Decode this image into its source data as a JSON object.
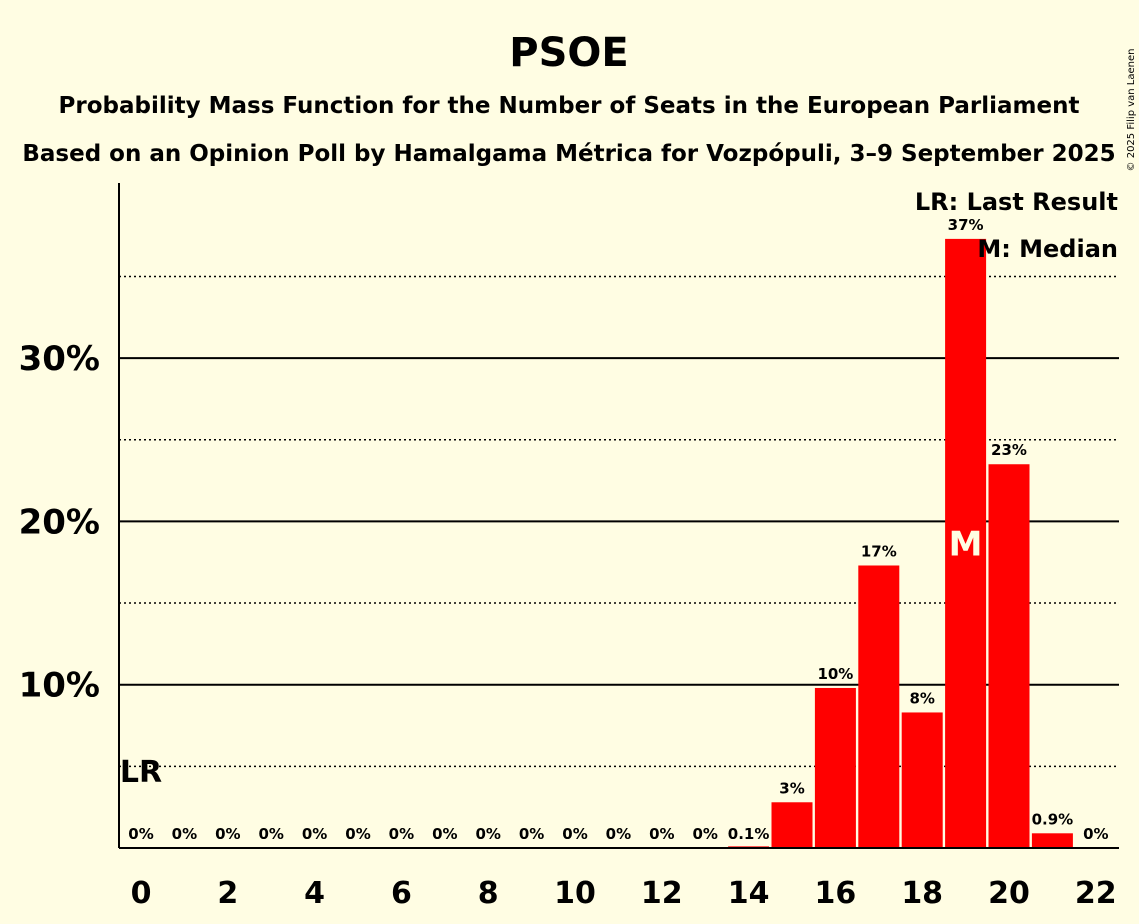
{
  "page": {
    "title": "PSOE",
    "subtitle1": "Probability Mass Function for the Number of Seats in the European Parliament",
    "subtitle2": "Based on an Opinion Poll by Hamalgama Métrica for Vozpópuli, 3–9 September 2025",
    "copyright": "© 2025 Filip van Laenen",
    "legend_lr": "LR: Last Result",
    "legend_m": "M: Median"
  },
  "colors": {
    "background": "#fffde3",
    "bar": "#ff0000",
    "text": "#000000"
  },
  "chart_data": {
    "type": "bar",
    "x": [
      0,
      1,
      2,
      3,
      4,
      5,
      6,
      7,
      8,
      9,
      10,
      11,
      12,
      13,
      14,
      15,
      16,
      17,
      18,
      19,
      20,
      21,
      22
    ],
    "values": [
      0,
      0,
      0,
      0,
      0,
      0,
      0,
      0,
      0,
      0,
      0,
      0,
      0,
      0,
      0.1,
      2.8,
      9.8,
      17.3,
      8.3,
      37.3,
      23.5,
      0.9,
      0
    ],
    "labels": [
      "0%",
      "0%",
      "0%",
      "0%",
      "0%",
      "0%",
      "0%",
      "0%",
      "0%",
      "0%",
      "0%",
      "0%",
      "0%",
      "0%",
      "0.1%",
      "3%",
      "10%",
      "17%",
      "8%",
      "37%",
      "23%",
      "0.9%",
      "0%"
    ],
    "xticks": [
      "0",
      "2",
      "4",
      "6",
      "8",
      "10",
      "12",
      "14",
      "16",
      "18",
      "20",
      "22"
    ],
    "xtick_values": [
      0,
      2,
      4,
      6,
      8,
      10,
      12,
      14,
      16,
      18,
      20,
      22
    ],
    "yticks": [
      "10%",
      "20%",
      "30%"
    ],
    "ytick_values": [
      10,
      20,
      30
    ],
    "minor_grid": [
      5,
      15,
      25,
      35
    ],
    "ylim": [
      0,
      40
    ],
    "median": 19,
    "median_label": "M",
    "last_result": 0,
    "last_result_label": "LR"
  }
}
